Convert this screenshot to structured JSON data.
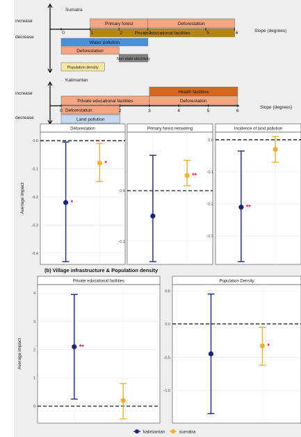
{
  "schematic": {
    "units_label": "Slope (degrees)",
    "axis_labels": {
      "increase": "increase",
      "decrease": "decrease"
    },
    "sumatra": {
      "region": "Sumatra",
      "ticks": [
        "0",
        "1",
        "2",
        "3",
        "5",
        "6"
      ],
      "bars": [
        {
          "label": "Primary forest",
          "start": 1,
          "end": 3,
          "direction": "increase",
          "color": "#f4a582"
        },
        {
          "label": "Deforestation",
          "start": 3,
          "end": 6,
          "direction": "increase",
          "color": "#f4a582"
        },
        {
          "label": "Private educational facilities",
          "start": 1,
          "end": 6,
          "direction": "decrease",
          "color": "#b8860b"
        },
        {
          "label": "Water pollution",
          "start": 0,
          "end": 3,
          "direction": "decrease",
          "color": "#4a90d9"
        },
        {
          "label": "Deforestation",
          "start": 0,
          "end": 2,
          "direction": "decrease",
          "color": "#f4a582"
        },
        {
          "label": "Non state electricity",
          "start": 2,
          "end": 3,
          "direction": "decrease",
          "color": "#808080"
        },
        {
          "label": "Population density",
          "start": 0,
          "end": 1.5,
          "direction": "decrease",
          "color": "#f5e6a3"
        }
      ]
    },
    "kalimantan": {
      "region": "Kalimantan",
      "ticks": [
        "0",
        "2",
        "3",
        "4",
        "5",
        "6"
      ],
      "bars": [
        {
          "label": "Health facilities",
          "start": 3,
          "end": 6,
          "direction": "increase",
          "color": "#d2691e"
        },
        {
          "label": "Private educational facilities",
          "start": 0,
          "end": 3,
          "direction": "increase",
          "color": "#f4a582"
        },
        {
          "label": "Deforestation",
          "start": 3,
          "end": 6,
          "direction": "increase",
          "color": "#f4a582"
        },
        {
          "label": "Deforestation",
          "start": 0,
          "end": 2,
          "direction": "decrease",
          "color": "#f4a582"
        },
        {
          "label": "Land pollution",
          "start": 0,
          "end": 2,
          "direction": "decrease",
          "color": "#c6d9f1"
        }
      ]
    }
  },
  "section_b_title": "(b) Village infrastructure & Population density",
  "legend": [
    {
      "label": "kalimantan",
      "color": "#1a237e"
    },
    {
      "label": "sumatra",
      "color": "#f0b030"
    }
  ],
  "chart_data": [
    {
      "type": "scatter",
      "title": "Deforestation",
      "ylabel": "Average impact",
      "ylim": [
        -0.43,
        0.02
      ],
      "yticks": [
        0.0,
        -0.1,
        -0.2,
        -0.3,
        -0.4
      ],
      "ytick_labels": [
        "0.0",
        "-0.1",
        "-0.2",
        "-0.3",
        "-0.4"
      ],
      "series": [
        {
          "name": "kalimantan",
          "estimate": -0.22,
          "ci_low": -0.43,
          "ci_high": -0.005,
          "significance": "*"
        },
        {
          "name": "sumatra",
          "estimate": -0.08,
          "ci_low": -0.145,
          "ci_high": -0.01,
          "significance": "*"
        }
      ]
    },
    {
      "type": "scatter",
      "title": "Primary forest remaining",
      "ylabel": "",
      "ylim": [
        -0.14,
        0.11
      ],
      "yticks": [
        0.0,
        -0.1
      ],
      "ytick_labels": [
        "0.0",
        "-0.1"
      ],
      "series": [
        {
          "name": "kalimantan",
          "estimate": -0.05,
          "ci_low": -0.14,
          "ci_high": 0.07,
          "significance": ""
        },
        {
          "name": "sumatra",
          "estimate": 0.03,
          "ci_low": 0.01,
          "ci_high": 0.06,
          "significance": "**"
        }
      ]
    },
    {
      "type": "scatter",
      "title": "Incidence of land pollution",
      "ylabel": "",
      "ylim": [
        -0.38,
        0.015
      ],
      "yticks": [
        0.0,
        -0.1,
        -0.2,
        -0.3
      ],
      "ytick_labels": [
        "0.0",
        "-0.1",
        "-0.2",
        "-0.3"
      ],
      "series": [
        {
          "name": "kalimantan",
          "estimate": -0.21,
          "ci_low": -0.38,
          "ci_high": -0.035,
          "significance": "**"
        },
        {
          "name": "sumatra",
          "estimate": -0.03,
          "ci_low": -0.07,
          "ci_high": 0.01,
          "significance": ""
        }
      ]
    },
    {
      "type": "scatter",
      "title": "Private educational facilities",
      "ylabel": "Average impact",
      "ylim": [
        -0.5,
        4.2
      ],
      "yticks": [
        0,
        1,
        2,
        3,
        4
      ],
      "ytick_labels": [
        "0",
        "1",
        "2",
        "3",
        "4"
      ],
      "series": [
        {
          "name": "kalimantan",
          "estimate": 2.1,
          "ci_low": 0.25,
          "ci_high": 3.95,
          "significance": "**"
        },
        {
          "name": "sumatra",
          "estimate": 0.2,
          "ci_low": -0.45,
          "ci_high": 0.8,
          "significance": ""
        }
      ]
    },
    {
      "type": "scatter",
      "title": "Population Density",
      "ylabel": "",
      "ylim": [
        -1.45,
        0.55
      ],
      "yticks": [
        0.5,
        0.0,
        -0.5,
        -1.0
      ],
      "ytick_labels": [
        "0.5",
        "0.0",
        "-0.5",
        "-1.0"
      ],
      "series": [
        {
          "name": "kalimantan",
          "estimate": -0.45,
          "ci_low": -1.35,
          "ci_high": 0.45,
          "significance": ""
        },
        {
          "name": "sumatra",
          "estimate": -0.33,
          "ci_low": -0.62,
          "ci_high": -0.05,
          "significance": "*"
        }
      ]
    }
  ]
}
